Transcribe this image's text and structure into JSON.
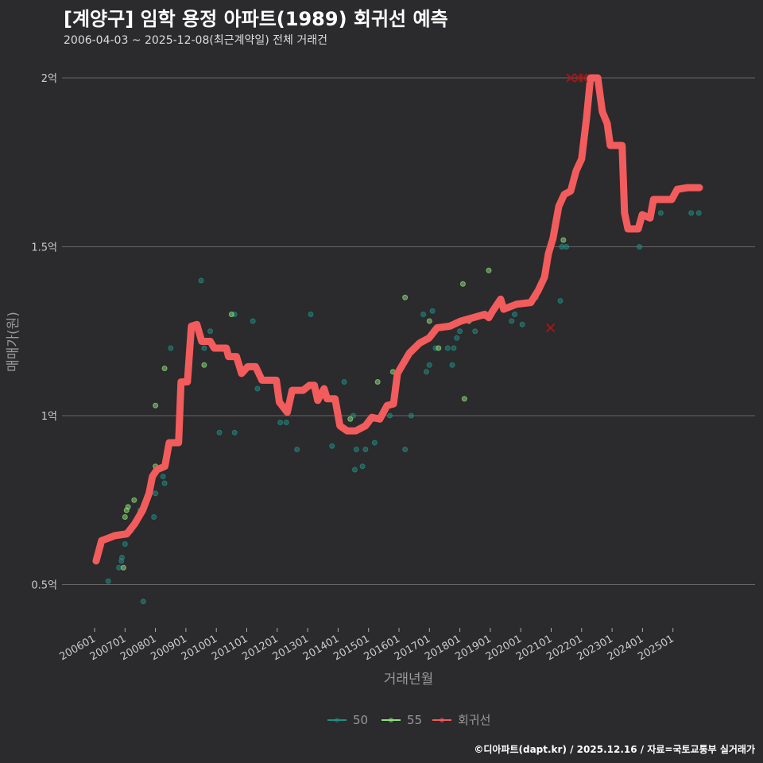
{
  "chart_data": {
    "type": "line",
    "title": "[계양구] 임학 용정 아파트(1989) 회귀선 예측",
    "subtitle": "2006-04-03 ~ 2025-12-08(최근계약일) 전체 거래건",
    "xlabel": "거래년월",
    "ylabel": "매매가(원)",
    "ylim": [
      0.38,
      2.05
    ],
    "xlim": [
      2005.5,
      2026.3
    ],
    "y_ticks": [
      {
        "v": 0.5,
        "label": "0.5억"
      },
      {
        "v": 1,
        "label": "1억"
      },
      {
        "v": 1.5,
        "label": "1.5억"
      },
      {
        "v": 2,
        "label": "2억"
      }
    ],
    "x_ticks": [
      "200601",
      "200701",
      "200801",
      "200901",
      "201001",
      "201101",
      "201201",
      "201301",
      "201401",
      "201501",
      "201601",
      "201701",
      "201801",
      "201901",
      "202001",
      "202101",
      "202201",
      "202301",
      "202401",
      "202501"
    ],
    "legend": [
      {
        "name": "50",
        "color": "#1f8f86"
      },
      {
        "name": "55",
        "color": "#8ee07a"
      },
      {
        "name": "회귀선",
        "color": "#f25c5c"
      }
    ],
    "legend_position": "bottom",
    "regression": [
      [
        2006.05,
        0.57
      ],
      [
        2006.23,
        0.63
      ],
      [
        2006.67,
        0.645
      ],
      [
        2007.06,
        0.65
      ],
      [
        2007.32,
        0.68
      ],
      [
        2007.58,
        0.72
      ],
      [
        2007.79,
        0.77
      ],
      [
        2007.9,
        0.82
      ],
      [
        2008.05,
        0.84
      ],
      [
        2008.31,
        0.85
      ],
      [
        2008.45,
        0.92
      ],
      [
        2008.76,
        0.92
      ],
      [
        2008.84,
        1.1
      ],
      [
        2009.05,
        1.1
      ],
      [
        2009.18,
        1.265
      ],
      [
        2009.36,
        1.27
      ],
      [
        2009.52,
        1.22
      ],
      [
        2009.8,
        1.22
      ],
      [
        2009.93,
        1.2
      ],
      [
        2010.33,
        1.2
      ],
      [
        2010.4,
        1.175
      ],
      [
        2010.66,
        1.175
      ],
      [
        2010.83,
        1.125
      ],
      [
        2011.03,
        1.145
      ],
      [
        2011.29,
        1.145
      ],
      [
        2011.5,
        1.105
      ],
      [
        2011.97,
        1.105
      ],
      [
        2012.07,
        1.04
      ],
      [
        2012.33,
        1.01
      ],
      [
        2012.49,
        1.075
      ],
      [
        2012.85,
        1.075
      ],
      [
        2013.06,
        1.09
      ],
      [
        2013.22,
        1.09
      ],
      [
        2013.33,
        1.045
      ],
      [
        2013.54,
        1.08
      ],
      [
        2013.64,
        1.05
      ],
      [
        2013.9,
        1.05
      ],
      [
        2014.06,
        0.97
      ],
      [
        2014.3,
        0.955
      ],
      [
        2014.58,
        0.955
      ],
      [
        2014.9,
        0.97
      ],
      [
        2015.11,
        0.995
      ],
      [
        2015.37,
        0.99
      ],
      [
        2015.61,
        1.03
      ],
      [
        2015.82,
        1.035
      ],
      [
        2015.95,
        1.125
      ],
      [
        2016.34,
        1.185
      ],
      [
        2016.68,
        1.215
      ],
      [
        2016.99,
        1.23
      ],
      [
        2017.25,
        1.26
      ],
      [
        2017.67,
        1.265
      ],
      [
        2018.03,
        1.28
      ],
      [
        2018.43,
        1.29
      ],
      [
        2018.82,
        1.3
      ],
      [
        2018.95,
        1.29
      ],
      [
        2019.08,
        1.31
      ],
      [
        2019.34,
        1.345
      ],
      [
        2019.44,
        1.315
      ],
      [
        2019.86,
        1.33
      ],
      [
        2020.33,
        1.335
      ],
      [
        2020.57,
        1.37
      ],
      [
        2020.78,
        1.41
      ],
      [
        2020.91,
        1.48
      ],
      [
        2021.06,
        1.525
      ],
      [
        2021.25,
        1.62
      ],
      [
        2021.43,
        1.655
      ],
      [
        2021.64,
        1.665
      ],
      [
        2021.82,
        1.725
      ],
      [
        2022.0,
        1.76
      ],
      [
        2022.16,
        1.88
      ],
      [
        2022.29,
        2.0
      ],
      [
        2022.53,
        2.0
      ],
      [
        2022.68,
        1.9
      ],
      [
        2022.84,
        1.865
      ],
      [
        2022.94,
        1.8
      ],
      [
        2023.33,
        1.8
      ],
      [
        2023.41,
        1.6
      ],
      [
        2023.52,
        1.553
      ],
      [
        2023.86,
        1.553
      ],
      [
        2023.99,
        1.595
      ],
      [
        2024.25,
        1.585
      ],
      [
        2024.36,
        1.64
      ],
      [
        2024.96,
        1.64
      ],
      [
        2025.14,
        1.67
      ],
      [
        2025.48,
        1.675
      ],
      [
        2025.87,
        1.675
      ]
    ],
    "outliers": [
      [
        2020.98,
        1.26
      ],
      [
        2021.64,
        2.0
      ],
      [
        2021.9,
        2.0
      ],
      [
        2022.05,
        2.0
      ]
    ],
    "series": [
      {
        "name": "50",
        "points": [
          [
            2006.45,
            0.51
          ],
          [
            2006.8,
            0.55
          ],
          [
            2006.88,
            0.57
          ],
          [
            2006.9,
            0.58
          ],
          [
            2007.0,
            0.62
          ],
          [
            2007.2,
            0.66
          ],
          [
            2007.5,
            0.72
          ],
          [
            2007.6,
            0.45
          ],
          [
            2007.95,
            0.7
          ],
          [
            2008.0,
            0.77
          ],
          [
            2008.25,
            0.82
          ],
          [
            2008.3,
            0.8
          ],
          [
            2008.5,
            1.2
          ],
          [
            2009.5,
            1.4
          ],
          [
            2009.6,
            1.2
          ],
          [
            2009.8,
            1.25
          ],
          [
            2010.1,
            0.95
          ],
          [
            2010.6,
            0.95
          ],
          [
            2010.6,
            1.3
          ],
          [
            2011.2,
            1.28
          ],
          [
            2011.35,
            1.08
          ],
          [
            2012.0,
            1.1
          ],
          [
            2012.1,
            0.98
          ],
          [
            2012.3,
            0.98
          ],
          [
            2012.65,
            0.9
          ],
          [
            2013.1,
            1.3
          ],
          [
            2013.8,
            0.91
          ],
          [
            2014.2,
            1.1
          ],
          [
            2014.5,
            1.0
          ],
          [
            2014.55,
            0.84
          ],
          [
            2014.6,
            0.9
          ],
          [
            2014.8,
            0.85
          ],
          [
            2014.9,
            0.9
          ],
          [
            2015.2,
            0.92
          ],
          [
            2015.7,
            1.0
          ],
          [
            2016.2,
            0.9
          ],
          [
            2016.4,
            1.0
          ],
          [
            2016.8,
            1.3
          ],
          [
            2016.9,
            1.13
          ],
          [
            2017.0,
            1.15
          ],
          [
            2017.1,
            1.31
          ],
          [
            2017.2,
            1.2
          ],
          [
            2017.6,
            1.2
          ],
          [
            2017.75,
            1.15
          ],
          [
            2017.8,
            1.2
          ],
          [
            2017.9,
            1.23
          ],
          [
            2018.0,
            1.25
          ],
          [
            2018.5,
            1.25
          ],
          [
            2019.7,
            1.28
          ],
          [
            2019.8,
            1.3
          ],
          [
            2020.05,
            1.27
          ],
          [
            2020.5,
            1.35
          ],
          [
            2021.3,
            1.34
          ],
          [
            2021.35,
            1.5
          ],
          [
            2021.5,
            1.5
          ],
          [
            2023.9,
            1.5
          ],
          [
            2024.6,
            1.6
          ],
          [
            2025.6,
            1.6
          ],
          [
            2025.85,
            1.6
          ]
        ]
      },
      {
        "name": "55",
        "points": [
          [
            2006.95,
            0.55
          ],
          [
            2007.0,
            0.7
          ],
          [
            2007.05,
            0.72
          ],
          [
            2007.1,
            0.73
          ],
          [
            2007.3,
            0.75
          ],
          [
            2008.0,
            1.03
          ],
          [
            2008.0,
            0.85
          ],
          [
            2008.3,
            1.14
          ],
          [
            2009.6,
            1.15
          ],
          [
            2010.5,
            1.3
          ],
          [
            2014.4,
            0.99
          ],
          [
            2015.3,
            1.1
          ],
          [
            2015.8,
            1.13
          ],
          [
            2016.2,
            1.35
          ],
          [
            2017.0,
            1.28
          ],
          [
            2017.3,
            1.2
          ],
          [
            2018.1,
            1.39
          ],
          [
            2018.15,
            1.05
          ],
          [
            2018.3,
            1.28
          ],
          [
            2018.95,
            1.43
          ],
          [
            2021.4,
            1.52
          ]
        ]
      }
    ]
  },
  "caption": "©디아파트(dapt.kr) / 2025.12.16 / 자료=국토교통부 실거래가"
}
